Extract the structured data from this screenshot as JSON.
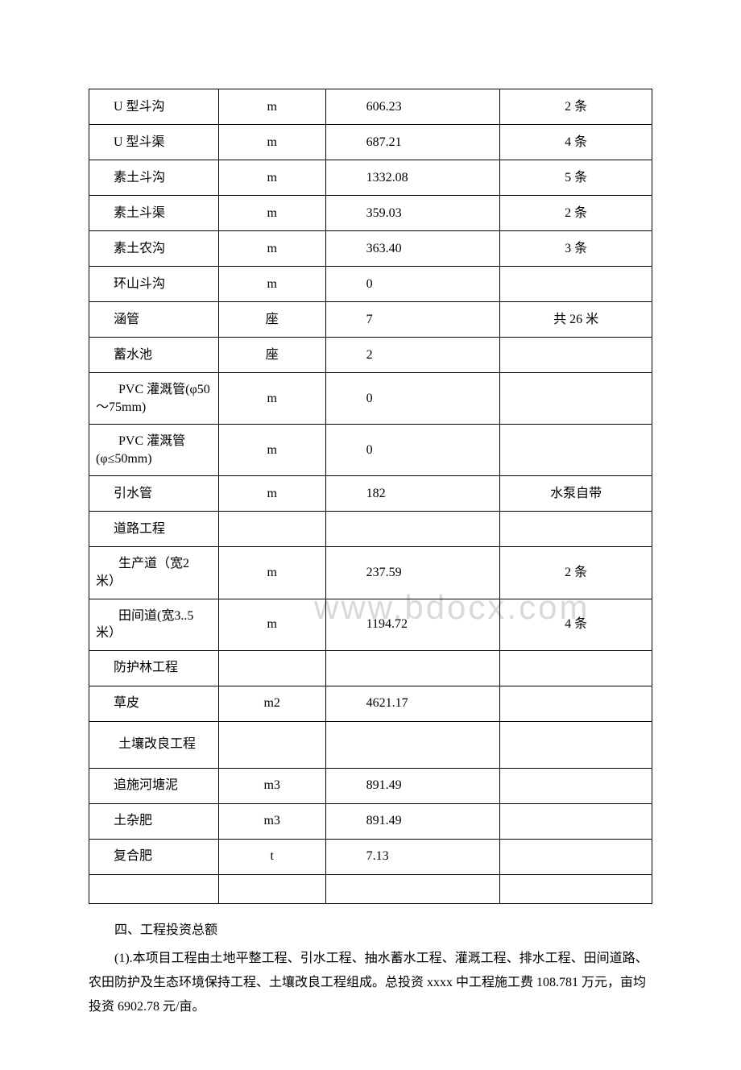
{
  "watermark": "www.bdocx.com",
  "table": {
    "rows": [
      {
        "name": "U 型斗沟",
        "unit": "m",
        "qty": "606.23",
        "note": "2 条"
      },
      {
        "name": "U 型斗渠",
        "unit": "m",
        "qty": "687.21",
        "note": "4 条"
      },
      {
        "name": "素土斗沟",
        "unit": "m",
        "qty": "1332.08",
        "note": "5 条"
      },
      {
        "name": "素土斗渠",
        "unit": "m",
        "qty": "359.03",
        "note": "2 条"
      },
      {
        "name": "素土农沟",
        "unit": "m",
        "qty": "363.40",
        "note": "3 条"
      },
      {
        "name": "环山斗沟",
        "unit": "m",
        "qty": "0",
        "note": ""
      },
      {
        "name": "涵管",
        "unit": "座",
        "qty": "7",
        "note": "共 26 米"
      },
      {
        "name": "蓄水池",
        "unit": "座",
        "qty": "2",
        "note": ""
      },
      {
        "name": "PVC 灌溉管(φ50～75mm)",
        "unit": "m",
        "qty": "0",
        "note": "",
        "wrap": true,
        "tall": true
      },
      {
        "name": "PVC 灌溉管(φ≤50mm)",
        "unit": "m",
        "qty": "0",
        "note": "",
        "wrap": true,
        "tall": true
      },
      {
        "name": "引水管",
        "unit": "m",
        "qty": "182",
        "note": "水泵自带"
      },
      {
        "name": "道路工程",
        "unit": "",
        "qty": "",
        "note": ""
      },
      {
        "name": "生产道（宽2 米）",
        "unit": "m",
        "qty": "237.59",
        "note": "2 条",
        "wrap": true,
        "tall": true
      },
      {
        "name": "田间道(宽3..5 米）",
        "unit": "m",
        "qty": "1194.72",
        "note": "4 条",
        "wrap": true,
        "tall": true
      },
      {
        "name": "防护林工程",
        "unit": "",
        "qty": "",
        "note": ""
      },
      {
        "name": "草皮",
        "unit": "m2",
        "qty": "4621.17",
        "note": ""
      },
      {
        "name": "土壤改良工程",
        "unit": "",
        "qty": "",
        "note": "",
        "wrap": true,
        "tall": true
      },
      {
        "name": "追施河塘泥",
        "unit": "m3",
        "qty": "891.49",
        "note": ""
      },
      {
        "name": "土杂肥",
        "unit": "m3",
        "qty": "891.49",
        "note": ""
      },
      {
        "name": "复合肥",
        "unit": "t",
        "qty": "7.13",
        "note": ""
      }
    ]
  },
  "section": {
    "title": "四、工程投资总额",
    "paragraph": "(1).本项目工程由土地平整工程、引水工程、抽水蓄水工程、灌溉工程、排水工程、田间道路、农田防护及生态环境保持工程、土壤改良工程组成。总投资 xxxx 中工程施工费 108.781 万元，亩均投资 6902.78 元/亩。"
  }
}
